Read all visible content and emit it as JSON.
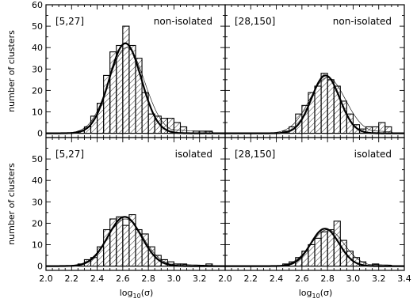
{
  "figure": {
    "ylabel_top": "number of clusters",
    "ylabel_bottom": "number of clusters",
    "xlabel_left_base": "log",
    "xlabel_left_sub": "10",
    "xlabel_left_arg": "(σ)",
    "xlabel_right_base": "log",
    "xlabel_right_sub": "10",
    "xlabel_right_arg": "(σ)"
  },
  "chart_data": [
    {
      "type": "histogram",
      "range_label": "[5,27]",
      "isolation_label": "non-isolated",
      "xlim": [
        2.0,
        3.4
      ],
      "ylim": [
        -2,
        60
      ],
      "xticks": [
        2.0,
        2.2,
        2.4,
        2.6,
        2.8,
        3.0,
        3.2
      ],
      "xtick_labels_visible": false,
      "yticks": [
        0,
        10,
        20,
        30,
        40,
        50,
        60
      ],
      "ytick_labels": [
        "0",
        "10",
        "20",
        "30",
        "40",
        "50",
        "60"
      ],
      "grid": false,
      "bin_width": 0.05,
      "bin_left_edges": [
        2.25,
        2.3,
        2.35,
        2.4,
        2.45,
        2.5,
        2.55,
        2.6,
        2.65,
        2.7,
        2.75,
        2.8,
        2.85,
        2.9,
        2.95,
        3.0,
        3.05,
        3.1,
        3.15,
        3.2,
        3.25
      ],
      "counts": [
        1,
        3,
        8,
        14,
        27,
        38,
        41,
        50,
        41,
        35,
        19,
        9,
        8,
        7,
        7,
        5,
        3,
        0,
        1,
        1,
        1
      ],
      "fit_gaussian": {
        "amplitude": 42,
        "mean": 2.62,
        "sigma": 0.125
      },
      "thin_curve": {
        "amplitude": 40,
        "mean": 2.63,
        "sigma": 0.14,
        "skew_tail": true
      }
    },
    {
      "type": "histogram",
      "range_label": "[28,150]",
      "isolation_label": "non-isolated",
      "xlim": [
        2.0,
        3.4
      ],
      "ylim": [
        -2,
        60
      ],
      "xticks": [
        2.0,
        2.2,
        2.4,
        2.6,
        2.8,
        3.0,
        3.2,
        3.4
      ],
      "xtick_labels_visible": false,
      "yticks": [
        0,
        10,
        20,
        30,
        40,
        50,
        60
      ],
      "ytick_labels_visible": false,
      "grid": false,
      "bin_width": 0.05,
      "bin_left_edges": [
        2.45,
        2.5,
        2.55,
        2.6,
        2.65,
        2.7,
        2.75,
        2.8,
        2.85,
        2.9,
        2.95,
        3.0,
        3.05,
        3.1,
        3.15,
        3.2,
        3.25
      ],
      "counts": [
        1,
        3,
        9,
        13,
        19,
        22,
        28,
        25,
        22,
        15,
        9,
        4,
        2,
        3,
        3,
        5,
        3
      ],
      "fit_gaussian": {
        "amplitude": 27,
        "mean": 2.785,
        "sigma": 0.11
      },
      "thin_curve": {
        "amplitude": 26,
        "mean": 2.8,
        "sigma": 0.14,
        "skew_tail": true
      }
    },
    {
      "type": "histogram",
      "range_label": "[5,27]",
      "isolation_label": "isolated",
      "xlim": [
        2.0,
        3.4
      ],
      "ylim": [
        -2,
        60
      ],
      "xticks": [
        2.0,
        2.2,
        2.4,
        2.6,
        2.8,
        3.0,
        3.2
      ],
      "xtick_labels": [
        "2.0",
        "2.2",
        "2.4",
        "2.6",
        "2.8",
        "3.0",
        "3.2"
      ],
      "yticks": [
        0,
        10,
        20,
        30,
        40,
        50,
        60
      ],
      "ytick_labels": [
        "0",
        "10",
        "20",
        "30",
        "40",
        "50",
        ""
      ],
      "grid": false,
      "bin_width": 0.05,
      "bin_left_edges": [
        2.25,
        2.3,
        2.35,
        2.4,
        2.45,
        2.5,
        2.55,
        2.6,
        2.65,
        2.7,
        2.75,
        2.8,
        2.85,
        2.9,
        2.95,
        3.0,
        3.05,
        3.1,
        3.15,
        3.2,
        3.25
      ],
      "counts": [
        1,
        3,
        4,
        9,
        17,
        22,
        23,
        19,
        24,
        17,
        15,
        9,
        5,
        3,
        2,
        1,
        1,
        0,
        0,
        0,
        1
      ],
      "fit_gaussian": {
        "amplitude": 23,
        "mean": 2.615,
        "sigma": 0.13
      },
      "thin_curve": {
        "amplitude": 22,
        "mean": 2.62,
        "sigma": 0.14,
        "skew_tail": true
      }
    },
    {
      "type": "histogram",
      "range_label": "[28,150]",
      "isolation_label": "isolated",
      "xlim": [
        2.0,
        3.4
      ],
      "ylim": [
        -2,
        60
      ],
      "xticks": [
        2.0,
        2.2,
        2.4,
        2.6,
        2.8,
        3.0,
        3.2,
        3.4
      ],
      "xtick_labels": [
        "2.0",
        "2.2",
        "2.4",
        "2.6",
        "2.8",
        "3.0",
        "3.2",
        "3.4"
      ],
      "yticks": [
        0,
        10,
        20,
        30,
        40,
        50,
        60
      ],
      "ytick_labels_visible": false,
      "grid": false,
      "bin_width": 0.05,
      "bin_left_edges": [
        2.45,
        2.5,
        2.55,
        2.6,
        2.65,
        2.7,
        2.75,
        2.8,
        2.85,
        2.9,
        2.95,
        3.0,
        3.05,
        3.1,
        3.15,
        3.2,
        3.25
      ],
      "counts": [
        1,
        2,
        4,
        7,
        10,
        13,
        16,
        17,
        21,
        12,
        7,
        4,
        2,
        0,
        1,
        0,
        0
      ],
      "fit_gaussian": {
        "amplitude": 17.5,
        "mean": 2.78,
        "sigma": 0.11
      },
      "thin_curve": {
        "amplitude": 17,
        "mean": 2.8,
        "sigma": 0.13,
        "skew_tail": true
      }
    }
  ]
}
